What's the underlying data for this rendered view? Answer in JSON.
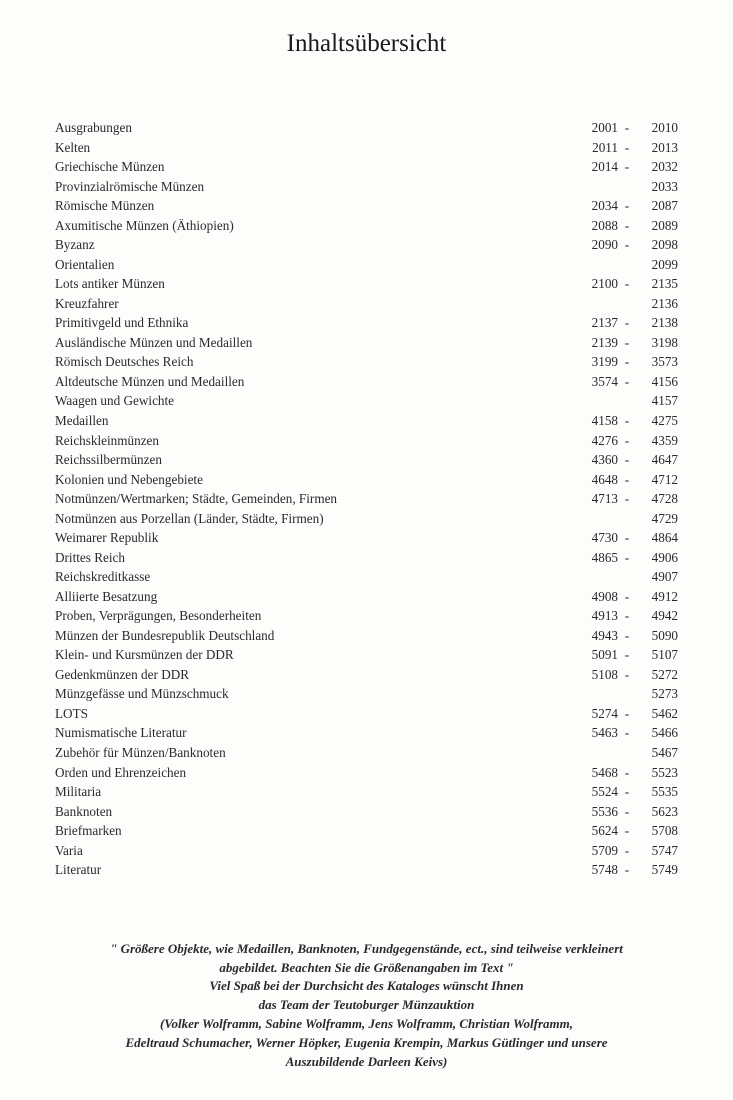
{
  "title": "Inhaltsübersicht",
  "toc": [
    {
      "label": "Ausgrabungen",
      "start": "2001",
      "end": "2010"
    },
    {
      "label": "Kelten",
      "start": "2011",
      "end": "2013"
    },
    {
      "label": "Griechische Münzen",
      "start": "2014",
      "end": "2032"
    },
    {
      "label": "Provinzialrömische Münzen",
      "start": "",
      "end": "2033"
    },
    {
      "label": "Römische Münzen",
      "start": "2034",
      "end": "2087"
    },
    {
      "label": "Axumitische Münzen (Äthiopien)",
      "start": "2088",
      "end": "2089"
    },
    {
      "label": "Byzanz",
      "start": "2090",
      "end": "2098"
    },
    {
      "label": "Orientalien",
      "start": "",
      "end": "2099"
    },
    {
      "label": "Lots antiker Münzen",
      "start": "2100",
      "end": "2135"
    },
    {
      "label": "Kreuzfahrer",
      "start": "",
      "end": "2136"
    },
    {
      "label": "Primitivgeld und Ethnika",
      "start": "2137",
      "end": "2138"
    },
    {
      "label": "Ausländische Münzen und Medaillen",
      "start": "2139",
      "end": "3198"
    },
    {
      "label": "Römisch Deutsches Reich",
      "start": "3199",
      "end": "3573"
    },
    {
      "label": "Altdeutsche Münzen und Medaillen",
      "start": "3574",
      "end": "4156"
    },
    {
      "label": "Waagen und Gewichte",
      "start": "",
      "end": "4157"
    },
    {
      "label": "Medaillen",
      "start": "4158",
      "end": "4275"
    },
    {
      "label": "Reichskleinmünzen",
      "start": "4276",
      "end": "4359"
    },
    {
      "label": "Reichssilbermünzen",
      "start": "4360",
      "end": "4647"
    },
    {
      "label": "Kolonien und Nebengebiete",
      "start": "4648",
      "end": "4712"
    },
    {
      "label": "Notmünzen/Wertmarken; Städte, Gemeinden, Firmen",
      "start": "4713",
      "end": "4728"
    },
    {
      "label": "Notmünzen aus Porzellan (Länder, Städte, Firmen)",
      "start": "",
      "end": "4729"
    },
    {
      "label": "Weimarer Republik",
      "start": "4730",
      "end": "4864"
    },
    {
      "label": "Drittes Reich",
      "start": "4865",
      "end": "4906"
    },
    {
      "label": "Reichskreditkasse",
      "start": "",
      "end": "4907"
    },
    {
      "label": "Alliierte Besatzung",
      "start": "4908",
      "end": "4912"
    },
    {
      "label": "Proben, Verprägungen, Besonderheiten",
      "start": "4913",
      "end": "4942"
    },
    {
      "label": "Münzen der Bundesrepublik Deutschland",
      "start": "4943",
      "end": "5090"
    },
    {
      "label": "Klein- und Kursmünzen der DDR",
      "start": "5091",
      "end": "5107"
    },
    {
      "label": "Gedenkmünzen der DDR",
      "start": "5108",
      "end": "5272"
    },
    {
      "label": "Münzgefässe und Münzschmuck",
      "start": "",
      "end": "5273"
    },
    {
      "label": "LOTS",
      "start": "5274",
      "end": "5462"
    },
    {
      "label": "Numismatische Literatur",
      "start": "5463",
      "end": "5466"
    },
    {
      "label": "Zubehör für Münzen/Banknoten",
      "start": "",
      "end": "5467"
    },
    {
      "label": "Orden und Ehrenzeichen",
      "start": "5468",
      "end": "5523"
    },
    {
      "label": "Militaria",
      "start": "5524",
      "end": "5535"
    },
    {
      "label": "Banknoten",
      "start": "5536",
      "end": "5623"
    },
    {
      "label": "Briefmarken",
      "start": "5624",
      "end": "5708"
    },
    {
      "label": "Varia",
      "start": "5709",
      "end": "5747"
    },
    {
      "label": "Literatur",
      "start": "5748",
      "end": "5749"
    }
  ],
  "footer": {
    "quote1": "\" Größere Objekte, wie Medaillen, Banknoten, Fundgegenstände, ect., sind teilweise verkleinert",
    "quote2": "abgebildet. Beachten Sie die Größenangaben im Text \"",
    "line3": "Viel Spaß bei der Durchsicht des Kataloges wünscht Ihnen",
    "line4": "das Team der Teutoburger Münzauktion",
    "line5": "(Volker Wolframm, Sabine Wolframm, Jens Wolframm, Christian Wolframm,",
    "line6": "Edeltraud Schumacher, Werner Höpker, Eugenia Krempin, Markus Gütlinger und unsere",
    "line7": "Auszubildende Darleen Keivs)"
  }
}
